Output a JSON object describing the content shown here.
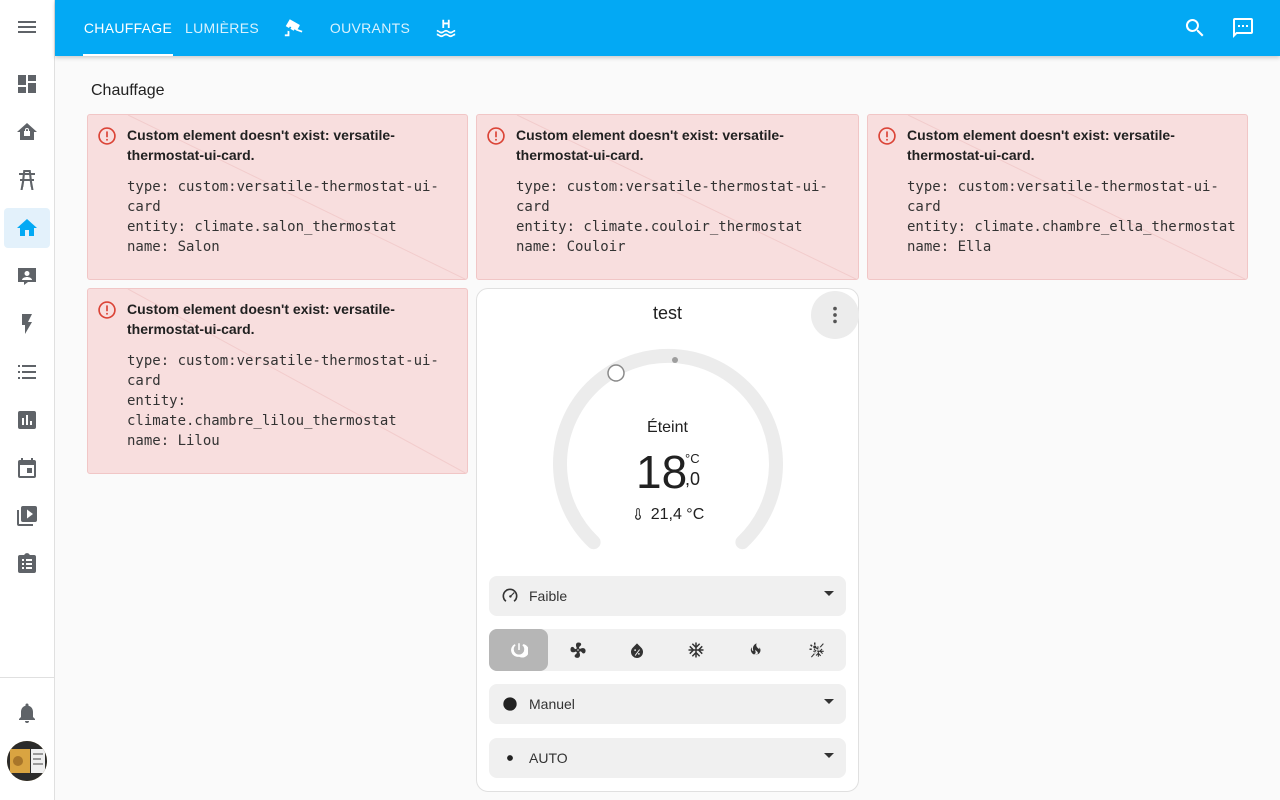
{
  "tabs": [
    {
      "label": "CHAUFFAGE",
      "active": true
    },
    {
      "label": "LUMIÈRES"
    },
    {
      "icon": "cctv-icon"
    },
    {
      "label": "OUVRANTS"
    },
    {
      "icon": "pool-icon"
    }
  ],
  "topbar_actions": [
    "search-icon",
    "assist-icon"
  ],
  "sidebar_items": [
    "view-dashboard-icon",
    "home-security-icon",
    "transmission-tower-icon",
    "home-icon",
    "account-box-icon",
    "flash-icon",
    "list-icon",
    "chart-box-icon",
    "calendar-icon",
    "media-icon",
    "clipboard-list-icon",
    "bell-icon"
  ],
  "section_title": "Chauffage",
  "error_cards": [
    {
      "title": "Custom element doesn't exist: versatile-thermostat-ui-card.",
      "code": "type: custom:versatile-thermostat-ui-\ncard\nentity: climate.salon_thermostat\nname: Salon"
    },
    {
      "title": "Custom element doesn't exist: versatile-thermostat-ui-card.",
      "code": "type: custom:versatile-thermostat-ui-\ncard\nentity: climate.couloir_thermostat\nname: Couloir"
    },
    {
      "title": "Custom element doesn't exist: versatile-thermostat-ui-card.",
      "code": "type: custom:versatile-thermostat-ui-\ncard\nentity: climate.chambre_ella_thermostat\nname: Ella"
    },
    {
      "title": "Custom element doesn't exist: versatile-thermostat-ui-card.",
      "code": "type: custom:versatile-thermostat-ui-\ncard\nentity:\nclimate.chambre_lilou_thermostat\nname: Lilou"
    }
  ],
  "thermostat": {
    "name": "test",
    "state": "Éteint",
    "target_int": "18",
    "target_unit": "°C",
    "target_dec": ",0",
    "current": "21,4 °C",
    "fan_select": "Faible",
    "preset_select": "Manuel",
    "swing_select": "AUTO",
    "modes": [
      "power-icon",
      "fan-icon",
      "water-percent-icon",
      "snowflake-icon",
      "fire-icon",
      "sun-snowflake-icon"
    ],
    "active_mode": "power-icon",
    "accent_color": "#03a9f4"
  }
}
